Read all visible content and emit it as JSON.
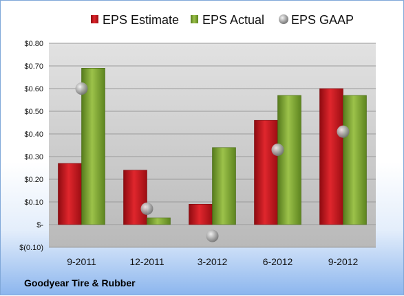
{
  "chart_data": {
    "type": "bar",
    "title": "",
    "xlabel": "",
    "ylabel": "",
    "categories": [
      "9-2011",
      "12-2011",
      "3-2012",
      "6-2012",
      "9-2012"
    ],
    "series": [
      {
        "name": "EPS Estimate",
        "kind": "bar",
        "color": "#c0141b",
        "values": [
          0.27,
          0.24,
          0.09,
          0.46,
          0.6
        ]
      },
      {
        "name": "EPS Actual",
        "kind": "bar",
        "color": "#76a12a",
        "values": [
          0.69,
          0.03,
          0.34,
          0.57,
          0.57
        ]
      },
      {
        "name": "EPS GAAP",
        "kind": "marker",
        "color": "#9a9a9a",
        "values": [
          0.6,
          0.07,
          -0.05,
          0.33,
          0.41
        ]
      }
    ],
    "ylim": [
      -0.1,
      0.8
    ],
    "y_ticks": [
      0.8,
      0.7,
      0.6,
      0.5,
      0.4,
      0.3,
      0.2,
      0.1,
      0.0,
      -0.1
    ],
    "y_tick_labels": [
      "$0.80",
      "$0.70",
      "$0.60",
      "$0.50",
      "$0.40",
      "$0.30",
      "$0.20",
      "$0.10",
      "$-",
      "$(0.10)"
    ],
    "grid": true,
    "legend_position": "top"
  },
  "footer": {
    "company": "Goodyear Tire & Rubber"
  }
}
